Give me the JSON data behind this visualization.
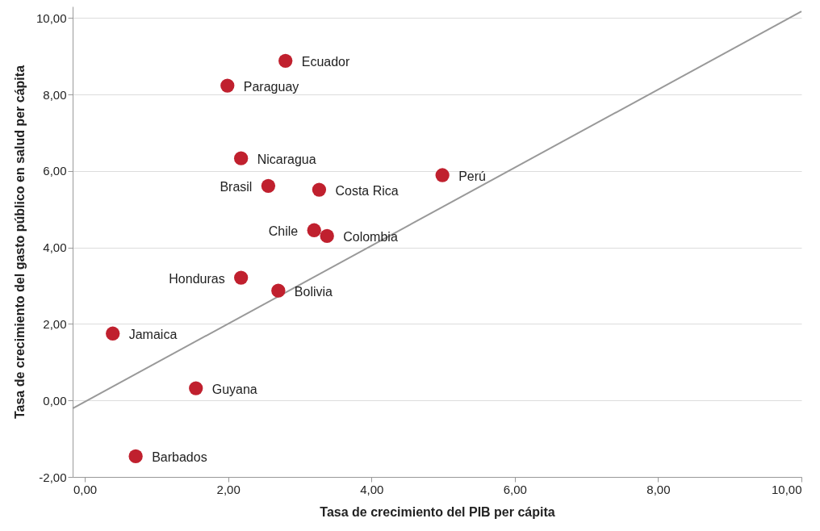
{
  "chart_data": {
    "type": "scatter",
    "xlabel": "Tasa de crecimiento del PIB per cápita",
    "ylabel": "Tasa de crecimiento del gasto público en salud per cápita",
    "xlim": [
      -0.17,
      10
    ],
    "ylim": [
      -2,
      10.3
    ],
    "xticks": [
      {
        "value": 0,
        "label": "0,00"
      },
      {
        "value": 2,
        "label": "2,00"
      },
      {
        "value": 4,
        "label": "4,00"
      },
      {
        "value": 6,
        "label": "6,00"
      },
      {
        "value": 8,
        "label": "8,00"
      },
      {
        "value": 10,
        "label": "10,00"
      }
    ],
    "yticks": [
      {
        "value": -2,
        "label": "-2,00"
      },
      {
        "value": 0,
        "label": "0,00"
      },
      {
        "value": 2,
        "label": "2,00"
      },
      {
        "value": 4,
        "label": "4,00"
      },
      {
        "value": 6,
        "label": "6,00"
      },
      {
        "value": 8,
        "label": "8,00"
      },
      {
        "value": 10,
        "label": "10,00"
      }
    ],
    "grid": "y",
    "marker": "circle",
    "series": [
      {
        "type": "line",
        "marker": "none",
        "color": "#999999",
        "x": [
          -0.17,
          10
        ],
        "values": [
          -0.21,
          10.17
        ]
      },
      {
        "color": "#c0202e",
        "x": [
          2.8,
          1.99,
          2.18,
          2.56,
          3.27,
          4.99,
          3.2,
          3.38,
          2.18,
          2.7,
          0.39,
          1.55,
          0.71
        ],
        "values": [
          8.88,
          8.23,
          6.33,
          5.61,
          5.51,
          5.89,
          4.45,
          4.3,
          3.21,
          2.87,
          1.75,
          0.32,
          -1.46
        ]
      }
    ],
    "annotations": [
      {
        "text": "Ecuador",
        "x": 2.8,
        "y": 8.88
      },
      {
        "text": "Paraguay",
        "x": 1.99,
        "y": 8.23
      },
      {
        "text": "Nicaragua",
        "x": 2.18,
        "y": 6.33
      },
      {
        "text": "Brasil",
        "x": 2.56,
        "y": 5.61
      },
      {
        "text": "Costa Rica",
        "x": 3.27,
        "y": 5.51
      },
      {
        "text": "Perú",
        "x": 4.99,
        "y": 5.89
      },
      {
        "text": "Chile",
        "x": 3.2,
        "y": 4.45
      },
      {
        "text": "Colombia",
        "x": 3.38,
        "y": 4.3
      },
      {
        "text": "Honduras",
        "x": 2.18,
        "y": 3.21
      },
      {
        "text": "Bolivia",
        "x": 2.7,
        "y": 2.87
      },
      {
        "text": "Jamaica",
        "x": 0.39,
        "y": 1.75
      },
      {
        "text": "Guyana",
        "x": 1.55,
        "y": 0.32
      },
      {
        "text": "Barbados",
        "x": 0.71,
        "y": -1.46
      }
    ]
  }
}
